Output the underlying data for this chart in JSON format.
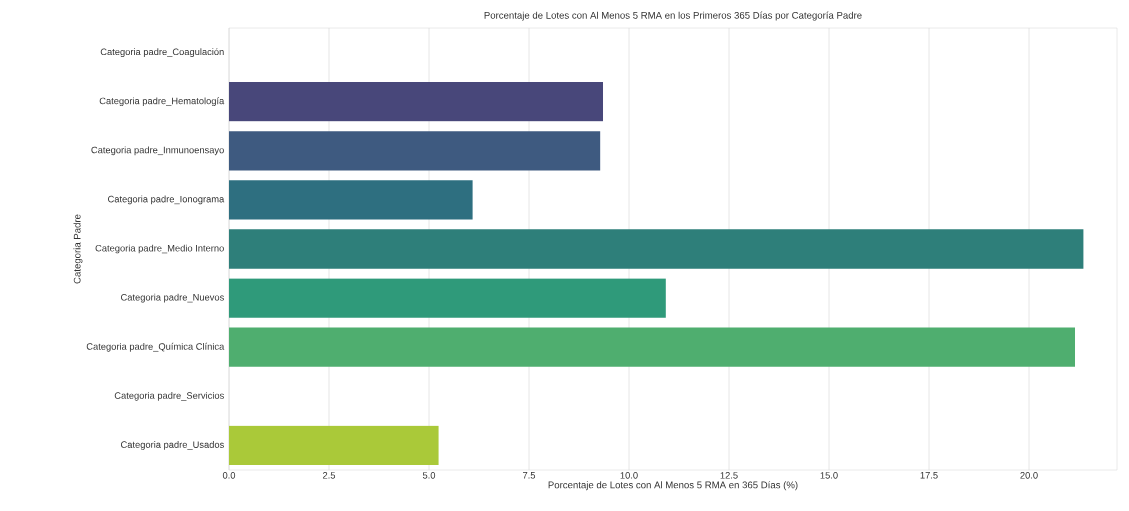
{
  "chart_data": {
    "type": "bar",
    "orientation": "horizontal",
    "title": "Porcentaje de Lotes con Al Menos 5 RMA en los Primeros 365 Días por Categoría Padre",
    "xlabel": "Porcentaje de Lotes con Al Menos 5 RMA en 365 Días (%)",
    "ylabel": "Categoria Padre",
    "categories": [
      "Categoria padre_Coagulación",
      "Categoria padre_Hematología",
      "Categoria padre_Inmunoensayo",
      "Categoria padre_Ionograma",
      "Categoria padre_Medio Interno",
      "Categoria padre_Nuevos",
      "Categoria padre_Química Clínica",
      "Categoria padre_Servicios",
      "Categoria padre_Usados"
    ],
    "values": [
      0,
      9.35,
      9.28,
      6.09,
      21.36,
      10.92,
      21.15,
      0,
      5.24
    ],
    "colors": [
      "#4a2a6e",
      "#48477a",
      "#3e5a80",
      "#2e6f80",
      "#2e7f7a",
      "#2f9a7a",
      "#4fae6f",
      "#86c145",
      "#aac939"
    ],
    "xlim": [
      0,
      22.2
    ],
    "xticks": [
      {
        "value": 0,
        "label": "0.0"
      },
      {
        "value": 2.5,
        "label": "2.5"
      },
      {
        "value": 5,
        "label": "5.0"
      },
      {
        "value": 7.5,
        "label": "7.5"
      },
      {
        "value": 10,
        "label": "10.0"
      },
      {
        "value": 12.5,
        "label": "12.5"
      },
      {
        "value": 15,
        "label": "15.0"
      },
      {
        "value": 17.5,
        "label": "17.5"
      },
      {
        "value": 20,
        "label": "20.0"
      }
    ],
    "grid": "x"
  }
}
